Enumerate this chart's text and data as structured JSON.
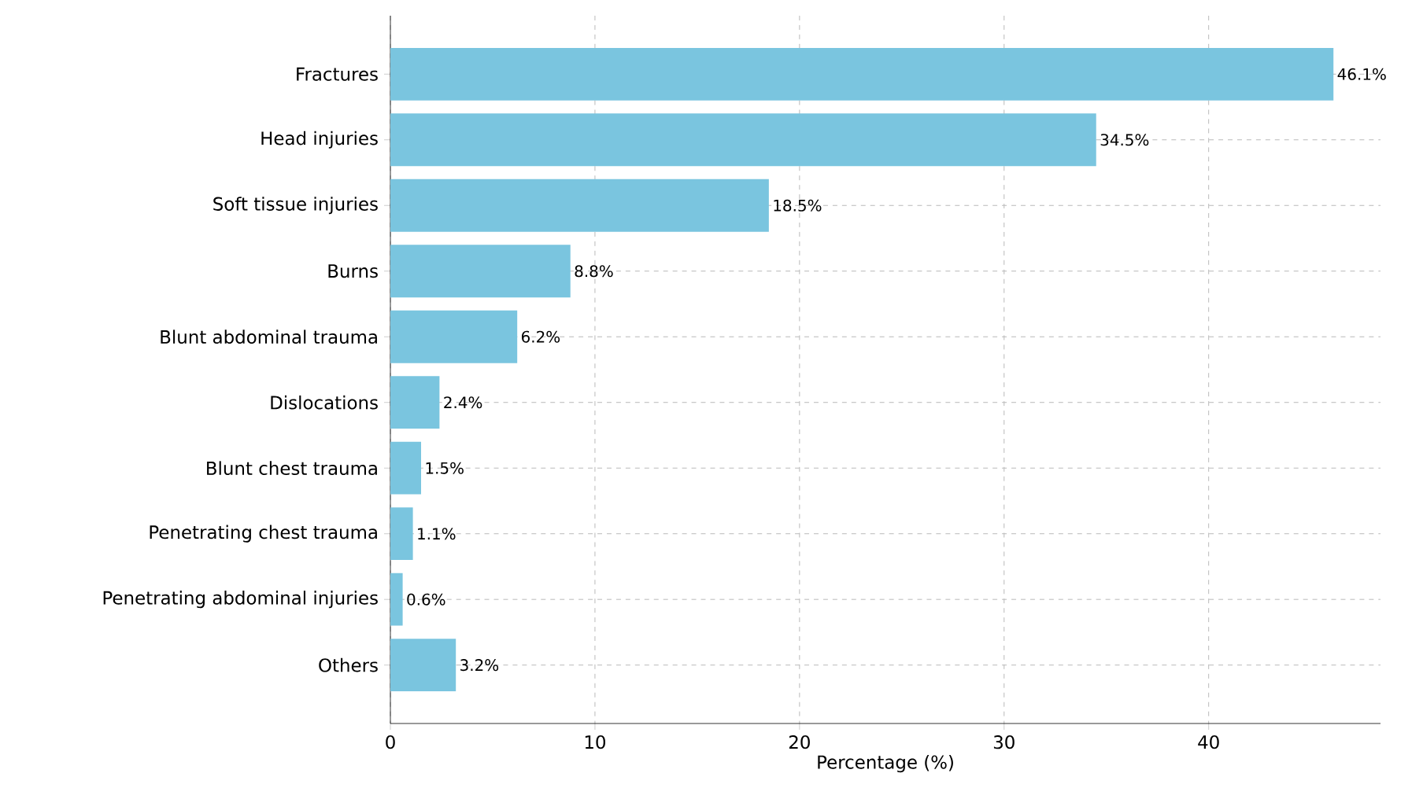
{
  "chart_data": {
    "type": "bar",
    "orientation": "horizontal",
    "xlabel": "Percentage (%)",
    "categories": [
      "Fractures",
      "Head injuries",
      "Soft tissue injuries",
      "Burns",
      "Blunt abdominal trauma",
      "Dislocations",
      "Blunt chest trauma",
      "Penetrating chest trauma",
      "Penetrating abdominal injuries",
      "Others"
    ],
    "values": [
      46.1,
      34.5,
      18.5,
      8.8,
      6.2,
      2.4,
      1.5,
      1.1,
      0.6,
      3.2
    ],
    "value_labels": [
      "46.1%",
      "34.5%",
      "18.5%",
      "8.8%",
      "6.2%",
      "2.4%",
      "1.5%",
      "1.1%",
      "0.6%",
      "3.2%"
    ],
    "color": "#7ac5df",
    "xlim": [
      0,
      48.4
    ],
    "xticks": [
      0,
      10,
      20,
      30,
      40
    ],
    "grid": true
  }
}
